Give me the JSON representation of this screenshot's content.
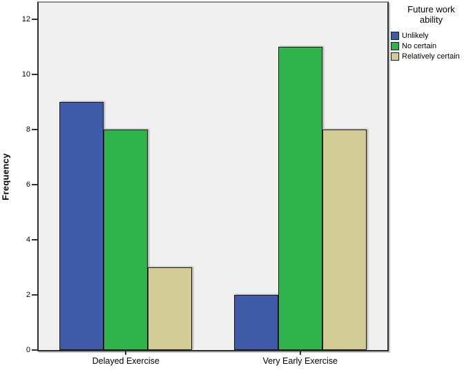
{
  "chart_data": {
    "type": "bar",
    "title": "",
    "xlabel": "",
    "ylabel": "Frequency",
    "categories": [
      "Delayed Exercise",
      "Very Early Exercise"
    ],
    "series": [
      {
        "name": "Unlikely",
        "color": "#3E5AA8",
        "values": [
          9,
          2
        ]
      },
      {
        "name": "No certain",
        "color": "#2FB34B",
        "values": [
          8,
          11
        ]
      },
      {
        "name": "Relatively certain",
        "color": "#D1CC94",
        "values": [
          3,
          8
        ]
      }
    ],
    "legend": {
      "title": "Future work ability",
      "position": "top-right"
    },
    "yticks": [
      0,
      2,
      4,
      6,
      8,
      10,
      12
    ],
    "ylim": [
      0,
      12.6
    ],
    "grid": false,
    "plot_background": "#F0F0F0",
    "frame_color": "#2E2E2E",
    "bar_border_color": "#1A1A1A"
  }
}
